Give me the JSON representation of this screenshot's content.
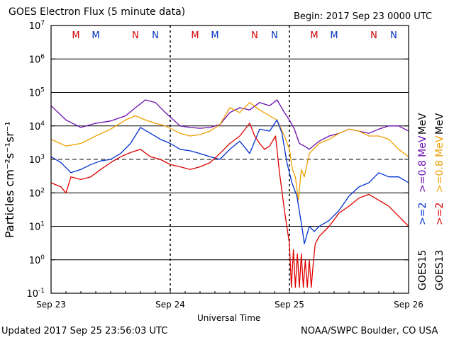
{
  "header": {
    "title": "GOES Electron Flux (5 minute data)",
    "begin": "Begin: 2017 Sep 23 0000 UTC"
  },
  "footer": {
    "updated": "Updated 2017 Sep 25 23:56:03 UTC",
    "credit": "NOAA/SWPC Boulder, CO USA"
  },
  "right_labels": {
    "goes15": "GOES15",
    "goes13": "GOES13",
    "goes15_high_prefix": ">=2",
    "goes15_high_unit": ">=0.8 MeV",
    "goes13_high_prefix": ">=2",
    "goes13_high_unit": ">=0.8 MeV",
    "mev_a": "MeV",
    "mev_b": "MeV"
  },
  "colors": {
    "goes15_08": "#6a0dad",
    "goes13_08": "#f0a000",
    "goes15_2": "#0030d0",
    "goes13_2": "#e00000",
    "m_marker": "#d00000",
    "n_marker": "#0030c0"
  },
  "chart_data": {
    "type": "line",
    "title": "GOES Electron Flux (5 minute data)",
    "xlabel": "Universal Time",
    "ylabel": "Particles cm⁻²s⁻¹sr⁻¹",
    "yscale": "log",
    "ylim": [
      0.1,
      10000000
    ],
    "xlim_hours": [
      0,
      72
    ],
    "x_ticks": [
      {
        "hour": 0,
        "label": "Sep 23"
      },
      {
        "hour": 24,
        "label": "Sep 24"
      },
      {
        "hour": 48,
        "label": "Sep 25"
      },
      {
        "hour": 72,
        "label": "Sep 26"
      }
    ],
    "y_ticks": [
      {
        "value": 0.1,
        "base": "10",
        "exp": "-1"
      },
      {
        "value": 1,
        "base": "10",
        "exp": "0"
      },
      {
        "value": 10,
        "base": "10",
        "exp": "1"
      },
      {
        "value": 100,
        "base": "10",
        "exp": "2"
      },
      {
        "value": 1000,
        "base": "10",
        "exp": "3"
      },
      {
        "value": 10000,
        "base": "10",
        "exp": "4"
      },
      {
        "value": 100000,
        "base": "10",
        "exp": "5"
      },
      {
        "value": 1000000,
        "base": "10",
        "exp": "6"
      },
      {
        "value": 10000000,
        "base": "10",
        "exp": "7"
      }
    ],
    "reference_lines": [
      1000
    ],
    "day_markers": [
      {
        "hour": 5,
        "label": "M",
        "sat": "GOES13"
      },
      {
        "hour": 9,
        "label": "M",
        "sat": "GOES15"
      },
      {
        "hour": 17,
        "label": "N",
        "sat": "GOES13"
      },
      {
        "hour": 21,
        "label": "N",
        "sat": "GOES15"
      },
      {
        "hour": 29,
        "label": "M",
        "sat": "GOES13"
      },
      {
        "hour": 33,
        "label": "M",
        "sat": "GOES15"
      },
      {
        "hour": 41,
        "label": "N",
        "sat": "GOES13"
      },
      {
        "hour": 45,
        "label": "N",
        "sat": "GOES15"
      },
      {
        "hour": 53,
        "label": "M",
        "sat": "GOES13"
      },
      {
        "hour": 57,
        "label": "M",
        "sat": "GOES15"
      },
      {
        "hour": 65,
        "label": "N",
        "sat": "GOES13"
      },
      {
        "hour": 69,
        "label": "N",
        "sat": "GOES15"
      }
    ],
    "series": [
      {
        "name": "GOES15 >=0.8 MeV",
        "color": "#6a0dad",
        "hours": [
          0,
          3,
          6,
          9,
          12,
          15,
          17,
          19,
          21,
          23,
          26,
          28,
          30,
          32,
          34,
          36,
          38,
          40,
          42,
          44,
          45.5,
          47,
          48,
          49,
          50,
          51,
          52,
          54,
          56,
          58,
          60,
          62,
          64,
          66,
          68,
          70,
          72
        ],
        "values": [
          40000,
          15000,
          9000,
          12000,
          14000,
          20000,
          35000,
          60000,
          50000,
          25000,
          10000,
          9000,
          8500,
          9000,
          11000,
          25000,
          35000,
          30000,
          50000,
          40000,
          60000,
          25000,
          15000,
          8000,
          3000,
          2500,
          2000,
          3500,
          5000,
          6000,
          8000,
          7000,
          6000,
          8000,
          10000,
          10000,
          7000
        ]
      },
      {
        "name": "GOES13 >=0.8 MeV",
        "color": "#f0a000",
        "hours": [
          0,
          3,
          6,
          9,
          12,
          15,
          17,
          19,
          21,
          23,
          26,
          28,
          30,
          32,
          34,
          36,
          38,
          40,
          42,
          44,
          45.5,
          47,
          48,
          48.6,
          49.2,
          49.8,
          50.4,
          51,
          52,
          54,
          56,
          58,
          60,
          62,
          64,
          66,
          68,
          70,
          72
        ],
        "values": [
          4000,
          2500,
          3000,
          5000,
          8000,
          15000,
          20000,
          15000,
          12000,
          10000,
          6000,
          5000,
          5500,
          7000,
          11000,
          35000,
          25000,
          50000,
          30000,
          20000,
          15000,
          5000,
          2000,
          500,
          300,
          60,
          500,
          300,
          1500,
          3000,
          4000,
          6000,
          8000,
          7000,
          5000,
          5000,
          4000,
          2000,
          1200
        ]
      },
      {
        "name": "GOES15 >=2 MeV",
        "color": "#0030d0",
        "hours": [
          0,
          2,
          4,
          6,
          8,
          10,
          12,
          14,
          16,
          18,
          20,
          22,
          24,
          26,
          28,
          30,
          32,
          34,
          36,
          38,
          40,
          42,
          44,
          45.5,
          46.5,
          47.5,
          48.5,
          49.5,
          50.5,
          51,
          52,
          53,
          54,
          56,
          58,
          60,
          62,
          64,
          66,
          68,
          70,
          72
        ],
        "values": [
          1200,
          800,
          400,
          500,
          700,
          900,
          1000,
          1500,
          3000,
          9000,
          6000,
          4000,
          3000,
          2000,
          1800,
          1500,
          1200,
          1000,
          2000,
          3500,
          1500,
          8000,
          7000,
          15000,
          6000,
          800,
          200,
          80,
          10,
          3,
          10,
          7,
          10,
          15,
          30,
          80,
          150,
          200,
          400,
          300,
          300,
          200
        ]
      },
      {
        "name": "GOES13 >=2 MeV",
        "color": "#e00000",
        "hours": [
          0,
          2,
          3,
          4,
          6,
          8,
          10,
          12,
          14,
          16,
          18,
          20,
          22,
          24,
          26,
          28,
          30,
          32,
          34,
          36,
          38,
          40,
          41,
          42,
          43,
          44,
          45.2,
          46,
          47,
          48,
          48.4,
          48.8,
          49.2,
          49.6,
          50,
          50.4,
          50.8,
          51.2,
          51.6,
          52,
          52.4,
          52.8,
          53.2,
          54,
          56,
          58,
          60,
          62,
          64,
          66,
          68,
          70,
          72
        ],
        "values": [
          200,
          150,
          100,
          300,
          250,
          300,
          500,
          800,
          1200,
          1600,
          2000,
          1200,
          1000,
          700,
          600,
          500,
          600,
          800,
          1500,
          3000,
          5000,
          12000,
          5000,
          3000,
          2000,
          2500,
          5000,
          400,
          30,
          3,
          0.15,
          2,
          0.15,
          1.5,
          0.15,
          1.5,
          0.15,
          1,
          0.15,
          1,
          0.15,
          0.8,
          3,
          5,
          10,
          25,
          40,
          70,
          90,
          60,
          40,
          20,
          10
        ]
      }
    ]
  }
}
